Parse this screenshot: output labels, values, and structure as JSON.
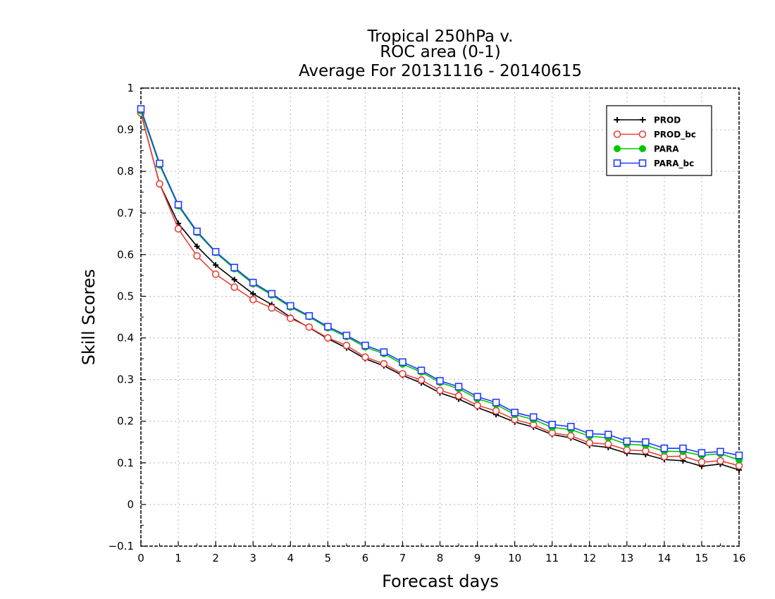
{
  "chart_data": {
    "type": "line",
    "title_lines": [
      "Tropical 250hPa v.",
      "ROC area (0-1)",
      "Average For 20131116 - 20140615"
    ],
    "xlabel": "Forecast days",
    "ylabel": "Skill Scores",
    "xlim": [
      0,
      16
    ],
    "ylim": [
      -0.1,
      1
    ],
    "x_ticks": [
      0,
      1,
      2,
      3,
      4,
      5,
      6,
      7,
      8,
      9,
      10,
      11,
      12,
      13,
      14,
      15,
      16
    ],
    "x_tick_labels": [
      "0",
      "1",
      "2",
      "3",
      "4",
      "5",
      "6",
      "7",
      "8",
      "9",
      "10",
      "11",
      "12",
      "13",
      "14",
      "15",
      "16"
    ],
    "y_ticks": [
      -0.1,
      0,
      0.1,
      0.2,
      0.3,
      0.4,
      0.5,
      0.6,
      0.7,
      0.8,
      0.9,
      1
    ],
    "y_tick_labels": [
      "−0.1",
      "0",
      "0.1",
      "0.2",
      "0.3",
      "0.4",
      "0.5",
      "0.6",
      "0.7",
      "0.8",
      "0.9",
      "1"
    ],
    "grid": true,
    "legend_position": "top-right",
    "x": [
      0,
      0.5,
      1,
      1.5,
      2,
      2.5,
      3,
      3.5,
      4,
      4.5,
      5,
      5.5,
      6,
      6.5,
      7,
      7.5,
      8,
      8.5,
      9,
      9.5,
      10,
      10.5,
      11,
      11.5,
      12,
      12.5,
      13,
      13.5,
      14,
      14.5,
      15,
      15.5,
      16
    ],
    "series": [
      {
        "name": "PROD",
        "color": "#000000",
        "marker": "plus",
        "values": [
          0.94,
          0.77,
          0.675,
          0.62,
          0.575,
          0.54,
          0.506,
          0.48,
          0.45,
          0.425,
          0.398,
          0.376,
          0.35,
          0.333,
          0.31,
          0.292,
          0.268,
          0.253,
          0.233,
          0.216,
          0.198,
          0.186,
          0.168,
          0.16,
          0.142,
          0.137,
          0.123,
          0.12,
          0.108,
          0.105,
          0.092,
          0.097,
          0.083
        ]
      },
      {
        "name": "PROD_bc",
        "color": "#e8413c",
        "marker": "circle",
        "values": [
          0.94,
          0.77,
          0.662,
          0.597,
          0.553,
          0.522,
          0.492,
          0.472,
          0.447,
          0.426,
          0.4,
          0.382,
          0.354,
          0.338,
          0.314,
          0.299,
          0.274,
          0.261,
          0.238,
          0.225,
          0.204,
          0.192,
          0.172,
          0.165,
          0.148,
          0.145,
          0.131,
          0.129,
          0.115,
          0.116,
          0.102,
          0.105,
          0.093
        ]
      },
      {
        "name": "PARA",
        "color": "#00c800",
        "marker": "filled-circle",
        "values": [
          0.945,
          0.815,
          0.717,
          0.653,
          0.605,
          0.566,
          0.53,
          0.503,
          0.474,
          0.451,
          0.424,
          0.403,
          0.378,
          0.362,
          0.337,
          0.318,
          0.293,
          0.278,
          0.254,
          0.24,
          0.216,
          0.204,
          0.185,
          0.18,
          0.164,
          0.16,
          0.145,
          0.142,
          0.128,
          0.127,
          0.118,
          0.122,
          0.107
        ]
      },
      {
        "name": "PARA_bc",
        "color": "#1f3cff",
        "marker": "open-square",
        "values": [
          0.95,
          0.819,
          0.72,
          0.656,
          0.607,
          0.569,
          0.533,
          0.506,
          0.477,
          0.453,
          0.427,
          0.406,
          0.382,
          0.366,
          0.342,
          0.322,
          0.297,
          0.283,
          0.259,
          0.245,
          0.221,
          0.21,
          0.192,
          0.187,
          0.17,
          0.168,
          0.152,
          0.15,
          0.135,
          0.135,
          0.124,
          0.127,
          0.118
        ]
      }
    ]
  }
}
